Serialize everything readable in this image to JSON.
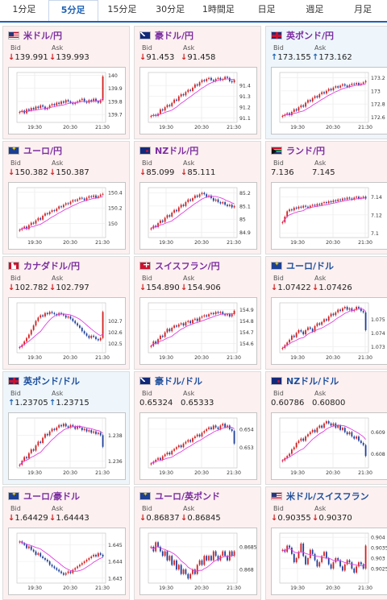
{
  "tabs": [
    {
      "label": "1分足",
      "active": false
    },
    {
      "label": "5分足",
      "active": true
    },
    {
      "label": "15分足",
      "active": false
    },
    {
      "label": "30分足",
      "active": false
    },
    {
      "label": "1時間足",
      "active": false
    },
    {
      "label": "日足",
      "active": false
    },
    {
      "label": "週足",
      "active": false
    },
    {
      "label": "月足",
      "active": false
    }
  ],
  "labels": {
    "bid": "Bid",
    "ask": "Ask"
  },
  "arrows": {
    "down": "↓",
    "up": "↑"
  },
  "x_ticks": [
    "19:30",
    "20:30",
    "21:30"
  ],
  "colors": {
    "up_candle": "#d41f1f",
    "down_candle": "#1d3f9a",
    "ma_line": "#e040e0",
    "price_down": "#d41f1f",
    "price_up": "#1d62b5"
  },
  "panels": [
    {
      "name": "米ドル/円",
      "flag": "f-us",
      "bid": "139.991",
      "ask": "139.993",
      "dir": "down",
      "style": "cross",
      "chart_data": {
        "type": "candlestick",
        "ylim": [
          139.64,
          140.02
        ],
        "yticks": [
          "140",
          "139.9",
          "139.8",
          "139.7"
        ],
        "ytick_values": [
          140,
          139.9,
          139.8,
          139.7
        ],
        "close": [
          139.72,
          139.73,
          139.71,
          139.74,
          139.73,
          139.75,
          139.74,
          139.76,
          139.75,
          139.77,
          139.76,
          139.74,
          139.75,
          139.77,
          139.78,
          139.77,
          139.79,
          139.78,
          139.8,
          139.79,
          139.81,
          139.8,
          139.79,
          139.78,
          139.79,
          139.8,
          139.81,
          139.82,
          139.8,
          139.79,
          139.81,
          139.8,
          139.82,
          139.8,
          139.79,
          139.81,
          139.99
        ]
      }
    },
    {
      "name": "豪ドル/円",
      "flag": "f-au",
      "bid": "91.453",
      "ask": "91.458",
      "dir": "down",
      "style": "cross",
      "chart_data": {
        "type": "candlestick",
        "ylim": [
          91.06,
          91.52
        ],
        "yticks": [
          "91.4",
          "91.3",
          "91.2",
          "91.1"
        ],
        "ytick_values": [
          91.4,
          91.3,
          91.2,
          91.1
        ],
        "close": [
          91.12,
          91.13,
          91.12,
          91.14,
          91.18,
          91.17,
          91.2,
          91.22,
          91.21,
          91.24,
          91.27,
          91.26,
          91.3,
          91.32,
          91.31,
          91.34,
          91.36,
          91.35,
          91.38,
          91.41,
          91.4,
          91.43,
          91.45,
          91.44,
          91.46,
          91.47,
          91.45,
          91.44,
          91.46,
          91.47,
          91.45,
          91.46,
          91.48,
          91.47,
          91.44,
          91.43,
          91.45
        ]
      }
    },
    {
      "name": "英ポンド/円",
      "flag": "f-gb",
      "bid": "173.155",
      "ask": "173.162",
      "dir": "up",
      "style": "cross",
      "chart_data": {
        "type": "candlestick",
        "ylim": [
          172.52,
          173.28
        ],
        "yticks": [
          "173.2",
          "173",
          "172.8",
          "172.6"
        ],
        "ytick_values": [
          173.2,
          173,
          172.8,
          172.6
        ],
        "close": [
          172.62,
          172.64,
          172.66,
          172.63,
          172.68,
          172.72,
          172.7,
          172.75,
          172.78,
          172.76,
          172.82,
          172.86,
          172.84,
          172.89,
          172.92,
          172.9,
          172.95,
          172.98,
          172.96,
          173.0,
          173.03,
          173.01,
          173.05,
          173.07,
          173.05,
          173.08,
          173.1,
          173.08,
          173.06,
          173.09,
          173.11,
          173.1,
          173.12,
          173.09,
          173.11,
          173.13,
          173.15
        ]
      }
    },
    {
      "name": "ユーロ/円",
      "flag": "f-eu",
      "bid": "150.382",
      "ask": "150.387",
      "dir": "down",
      "style": "cross",
      "chart_data": {
        "type": "candlestick",
        "ylim": [
          149.82,
          150.46
        ],
        "yticks": [
          "150.4",
          "150.2",
          "150"
        ],
        "ytick_values": [
          150.4,
          150.2,
          150
        ],
        "close": [
          149.92,
          149.94,
          149.96,
          149.93,
          149.98,
          150.01,
          150.0,
          150.04,
          150.07,
          150.05,
          150.1,
          150.13,
          150.12,
          150.15,
          150.17,
          150.16,
          150.19,
          150.22,
          150.21,
          150.24,
          150.26,
          150.25,
          150.28,
          150.3,
          150.29,
          150.31,
          150.33,
          150.32,
          150.3,
          150.33,
          150.35,
          150.34,
          150.36,
          150.33,
          150.35,
          150.37,
          150.38
        ]
      }
    },
    {
      "name": "NZドル/円",
      "flag": "f-nz",
      "bid": "85.099",
      "ask": "85.111",
      "dir": "down",
      "style": "cross",
      "chart_data": {
        "type": "candlestick",
        "ylim": [
          84.86,
          85.24
        ],
        "yticks": [
          "85.2",
          "85.1",
          "85",
          "84.9"
        ],
        "ytick_values": [
          85.2,
          85.1,
          85,
          84.9
        ],
        "close": [
          84.93,
          84.95,
          84.94,
          84.97,
          84.99,
          84.98,
          85.01,
          85.03,
          85.02,
          85.05,
          85.07,
          85.06,
          85.09,
          85.11,
          85.1,
          85.13,
          85.15,
          85.14,
          85.16,
          85.18,
          85.17,
          85.19,
          85.2,
          85.19,
          85.17,
          85.18,
          85.16,
          85.14,
          85.15,
          85.13,
          85.12,
          85.13,
          85.11,
          85.1,
          85.11,
          85.09,
          85.1
        ]
      }
    },
    {
      "name": "ランド/円",
      "flag": "f-za",
      "bid": "7.136",
      "ask": "7.145",
      "dir": "none",
      "style": "cross",
      "chart_data": {
        "type": "candlestick",
        "ylim": [
          7.095,
          7.15
        ],
        "yticks": [
          "7.14",
          "7.12",
          "7.1"
        ],
        "ytick_values": [
          7.14,
          7.12,
          7.1
        ],
        "close": [
          7.112,
          7.118,
          7.124,
          7.126,
          7.125,
          7.128,
          7.127,
          7.129,
          7.128,
          7.13,
          7.129,
          7.128,
          7.13,
          7.131,
          7.13,
          7.132,
          7.131,
          7.133,
          7.134,
          7.133,
          7.135,
          7.134,
          7.136,
          7.135,
          7.137,
          7.136,
          7.138,
          7.137,
          7.139,
          7.138,
          7.137,
          7.139,
          7.14,
          7.138,
          7.139,
          7.14,
          7.138
        ]
      }
    },
    {
      "name": "カナダドル/円",
      "flag": "f-ca",
      "bid": "102.782",
      "ask": "102.797",
      "dir": "down",
      "style": "cross",
      "chart_data": {
        "type": "candlestick",
        "ylim": [
          102.42,
          102.86
        ],
        "yticks": [
          "102.7",
          "102.6",
          "102.5"
        ],
        "ytick_values": [
          102.7,
          102.6,
          102.5
        ],
        "close": [
          102.47,
          102.49,
          102.52,
          102.55,
          102.58,
          102.62,
          102.66,
          102.7,
          102.73,
          102.75,
          102.74,
          102.77,
          102.76,
          102.78,
          102.77,
          102.76,
          102.75,
          102.77,
          102.76,
          102.75,
          102.73,
          102.74,
          102.72,
          102.7,
          102.68,
          102.66,
          102.64,
          102.61,
          102.59,
          102.57,
          102.55,
          102.57,
          102.56,
          102.54,
          102.53,
          102.55,
          102.78
        ]
      }
    },
    {
      "name": "スイスフラン/円",
      "flag": "f-ch",
      "bid": "154.890",
      "ask": "154.906",
      "dir": "down",
      "style": "cross",
      "chart_data": {
        "type": "candlestick",
        "ylim": [
          154.52,
          154.96
        ],
        "yticks": [
          "154.9",
          "154.8",
          "154.7",
          "154.6"
        ],
        "ytick_values": [
          154.9,
          154.8,
          154.7,
          154.6
        ],
        "close": [
          154.58,
          154.62,
          154.6,
          154.64,
          154.67,
          154.66,
          154.7,
          154.73,
          154.71,
          154.74,
          154.76,
          154.75,
          154.77,
          154.78,
          154.76,
          154.79,
          154.8,
          154.78,
          154.81,
          154.82,
          154.8,
          154.83,
          154.84,
          154.85,
          154.84,
          154.86,
          154.87,
          154.86,
          154.88,
          154.87,
          154.88,
          154.86,
          154.85,
          154.86,
          154.84,
          154.86,
          154.89
        ]
      }
    },
    {
      "name": "ユーロ/ドル",
      "flag": "f-eu",
      "bid": "1.07422",
      "ask": "1.07426",
      "dir": "down",
      "style": "cross",
      "usd": true,
      "chart_data": {
        "type": "candlestick",
        "ylim": [
          1.07255,
          1.0762
        ],
        "yticks": [
          "1.075",
          "1.074",
          "1.073"
        ],
        "ytick_values": [
          1.075,
          1.074,
          1.073
        ],
        "close": [
          1.0729,
          1.0731,
          1.0733,
          1.0735,
          1.0738,
          1.0737,
          1.074,
          1.0742,
          1.0741,
          1.0739,
          1.0742,
          1.0744,
          1.0743,
          1.0741,
          1.0745,
          1.0747,
          1.0746,
          1.0748,
          1.075,
          1.0749,
          1.0752,
          1.0754,
          1.0753,
          1.0755,
          1.0757,
          1.0756,
          1.0758,
          1.0759,
          1.0757,
          1.0758,
          1.0756,
          1.0757,
          1.0759,
          1.0758,
          1.0756,
          1.0755,
          1.0742
        ]
      }
    },
    {
      "name": "英ポンド/ドル",
      "flag": "f-gb",
      "bid": "1.23705",
      "ask": "1.23715",
      "dir": "up",
      "style": "cross",
      "usd": true,
      "chart_data": {
        "type": "candlestick",
        "ylim": [
          1.23545,
          1.23935
        ],
        "yticks": [
          "1.238",
          "1.236"
        ],
        "ytick_values": [
          1.238,
          1.236
        ],
        "close": [
          1.2357,
          1.236,
          1.2363,
          1.2362,
          1.2366,
          1.2369,
          1.2368,
          1.2372,
          1.2375,
          1.2374,
          1.2378,
          1.2381,
          1.238,
          1.2383,
          1.2385,
          1.2384,
          1.2386,
          1.2388,
          1.2387,
          1.2389,
          1.2387,
          1.2386,
          1.2388,
          1.2387,
          1.2385,
          1.2387,
          1.2386,
          1.2384,
          1.2385,
          1.2383,
          1.2384,
          1.2382,
          1.2383,
          1.2381,
          1.2382,
          1.238,
          1.2371
        ]
      }
    },
    {
      "name": "豪ドル/ドル",
      "flag": "f-au",
      "bid": "0.65324",
      "ask": "0.65333",
      "dir": "none",
      "style": "cross",
      "usd": true,
      "chart_data": {
        "type": "candlestick",
        "ylim": [
          0.65185,
          0.65462
        ],
        "yticks": [
          "0.654",
          "0.653"
        ],
        "ytick_values": [
          0.654,
          0.653
        ],
        "close": [
          0.6521,
          0.6522,
          0.6523,
          0.6524,
          0.6523,
          0.6525,
          0.6526,
          0.6527,
          0.6526,
          0.6528,
          0.6529,
          0.653,
          0.6531,
          0.653,
          0.6532,
          0.6533,
          0.6534,
          0.6533,
          0.6535,
          0.6536,
          0.6537,
          0.6536,
          0.6538,
          0.6539,
          0.654,
          0.6541,
          0.654,
          0.6542,
          0.6541,
          0.654,
          0.6542,
          0.6543,
          0.6541,
          0.6542,
          0.654,
          0.6539,
          0.6532
        ]
      }
    },
    {
      "name": "NZドル/ドル",
      "flag": "f-nz",
      "bid": "0.60786",
      "ask": "0.60800",
      "dir": "none",
      "style": "cross",
      "usd": true,
      "chart_data": {
        "type": "candlestick",
        "ylim": [
          0.60735,
          0.60965
        ],
        "yticks": [
          "0.609",
          "0.608"
        ],
        "ytick_values": [
          0.609,
          0.608
        ],
        "close": [
          0.6077,
          0.6078,
          0.6079,
          0.608,
          0.6082,
          0.6083,
          0.6085,
          0.6086,
          0.6087,
          0.6086,
          0.6088,
          0.6089,
          0.609,
          0.6091,
          0.609,
          0.6092,
          0.6093,
          0.6092,
          0.6094,
          0.6095,
          0.6094,
          0.6093,
          0.6094,
          0.6092,
          0.6093,
          0.6091,
          0.6092,
          0.609,
          0.6089,
          0.609,
          0.6088,
          0.6087,
          0.6088,
          0.6086,
          0.6085,
          0.6084,
          0.6079
        ]
      }
    },
    {
      "name": "ユーロ/豪ドル",
      "flag": "f-eu",
      "bid": "1.64429",
      "ask": "1.64443",
      "dir": "down",
      "style": "cross",
      "chart_data": {
        "type": "candlestick",
        "ylim": [
          1.6427,
          1.6457
        ],
        "yticks": [
          "1.645",
          "1.644",
          "1.643"
        ],
        "ytick_values": [
          1.645,
          1.644,
          1.643
        ],
        "close": [
          1.6452,
          1.6451,
          1.645,
          1.6448,
          1.6449,
          1.6447,
          1.6446,
          1.6444,
          1.6445,
          1.6443,
          1.6442,
          1.6441,
          1.644,
          1.6438,
          1.6437,
          1.6436,
          1.6435,
          1.6434,
          1.6433,
          1.6432,
          1.6433,
          1.6434,
          1.6433,
          1.6435,
          1.6436,
          1.6437,
          1.6438,
          1.6439,
          1.644,
          1.6441,
          1.6442,
          1.6443,
          1.6444,
          1.6443,
          1.6445,
          1.6444,
          1.6443
        ]
      }
    },
    {
      "name": "ユーロ/英ポンド",
      "flag": "f-eu",
      "bid": "0.86837",
      "ask": "0.86845",
      "dir": "down",
      "style": "cross",
      "chart_data": {
        "type": "candlestick",
        "ylim": [
          0.8677,
          0.8688
        ],
        "yticks": [
          "0.8685",
          "0.868"
        ],
        "ytick_values": [
          0.8685,
          0.868
        ],
        "close": [
          0.8685,
          0.8684,
          0.8686,
          0.8685,
          0.8684,
          0.8683,
          0.8684,
          0.8682,
          0.8683,
          0.8681,
          0.8682,
          0.868,
          0.8681,
          0.8679,
          0.868,
          0.8679,
          0.8678,
          0.8679,
          0.868,
          0.8679,
          0.8681,
          0.8682,
          0.8681,
          0.8683,
          0.8682,
          0.8683,
          0.8682,
          0.8684,
          0.8683,
          0.8682,
          0.8683,
          0.8684,
          0.8683,
          0.8682,
          0.8684,
          0.8683,
          0.8684
        ]
      }
    },
    {
      "name": "米ドル/スイスフラン",
      "flag": "f-us",
      "bid": "0.90355",
      "ask": "0.90370",
      "dir": "down",
      "style": "cross",
      "usd": true,
      "chart_data": {
        "type": "candlestick",
        "ylim": [
          0.9018,
          0.9042
        ],
        "yticks": [
          "0.904",
          "0.9035",
          "0.903",
          "0.9025"
        ],
        "ytick_values": [
          0.904,
          0.9035,
          0.903,
          0.9025
        ],
        "close": [
          0.9034,
          0.9033,
          0.9036,
          0.9035,
          0.9032,
          0.9028,
          0.903,
          0.9033,
          0.9037,
          0.9031,
          0.9027,
          0.903,
          0.9034,
          0.9032,
          0.9029,
          0.9026,
          0.9028,
          0.9031,
          0.9033,
          0.903,
          0.9027,
          0.9025,
          0.9028,
          0.903,
          0.9029,
          0.9026,
          0.9024,
          0.9027,
          0.9029,
          0.9028,
          0.9025,
          0.9023,
          0.9026,
          0.9028,
          0.9027,
          0.9025,
          0.9036
        ]
      }
    }
  ]
}
